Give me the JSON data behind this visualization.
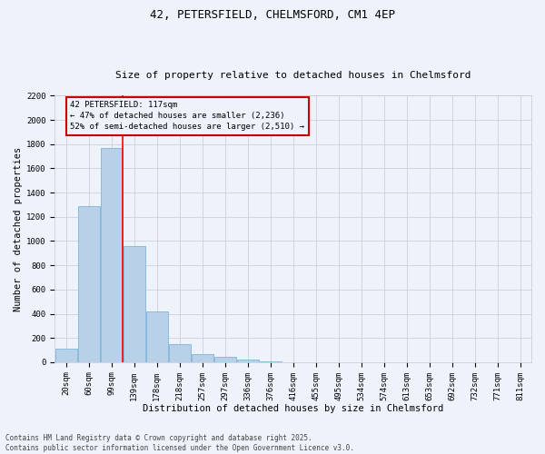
{
  "title_line1": "42, PETERSFIELD, CHELMSFORD, CM1 4EP",
  "title_line2": "Size of property relative to detached houses in Chelmsford",
  "xlabel": "Distribution of detached houses by size in Chelmsford",
  "ylabel": "Number of detached properties",
  "annotation_line1": "42 PETERSFIELD: 117sqm",
  "annotation_line2": "← 47% of detached houses are smaller (2,236)",
  "annotation_line3": "52% of semi-detached houses are larger (2,510) →",
  "footer_line1": "Contains HM Land Registry data © Crown copyright and database right 2025.",
  "footer_line2": "Contains public sector information licensed under the Open Government Licence v3.0.",
  "categories": [
    "20sqm",
    "60sqm",
    "99sqm",
    "139sqm",
    "178sqm",
    "218sqm",
    "257sqm",
    "297sqm",
    "336sqm",
    "376sqm",
    "416sqm",
    "455sqm",
    "495sqm",
    "534sqm",
    "574sqm",
    "613sqm",
    "653sqm",
    "692sqm",
    "732sqm",
    "771sqm",
    "811sqm"
  ],
  "values": [
    110,
    1290,
    1770,
    960,
    420,
    150,
    70,
    45,
    25,
    5,
    2,
    0,
    0,
    0,
    0,
    0,
    0,
    0,
    0,
    0,
    0
  ],
  "bar_color": "#b8d0e8",
  "bar_edge_color": "#6baed6",
  "red_line_x": 2.5,
  "ylim": [
    0,
    2200
  ],
  "yticks": [
    0,
    200,
    400,
    600,
    800,
    1000,
    1200,
    1400,
    1600,
    1800,
    2000,
    2200
  ],
  "annotation_box_color": "#cc0000",
  "background_color": "#eef2fa",
  "grid_color": "#c8c8d8",
  "title_fontsize": 9,
  "subtitle_fontsize": 8,
  "tick_fontsize": 6.5,
  "label_fontsize": 7.5,
  "footer_fontsize": 5.5,
  "ann_fontsize": 6.5
}
